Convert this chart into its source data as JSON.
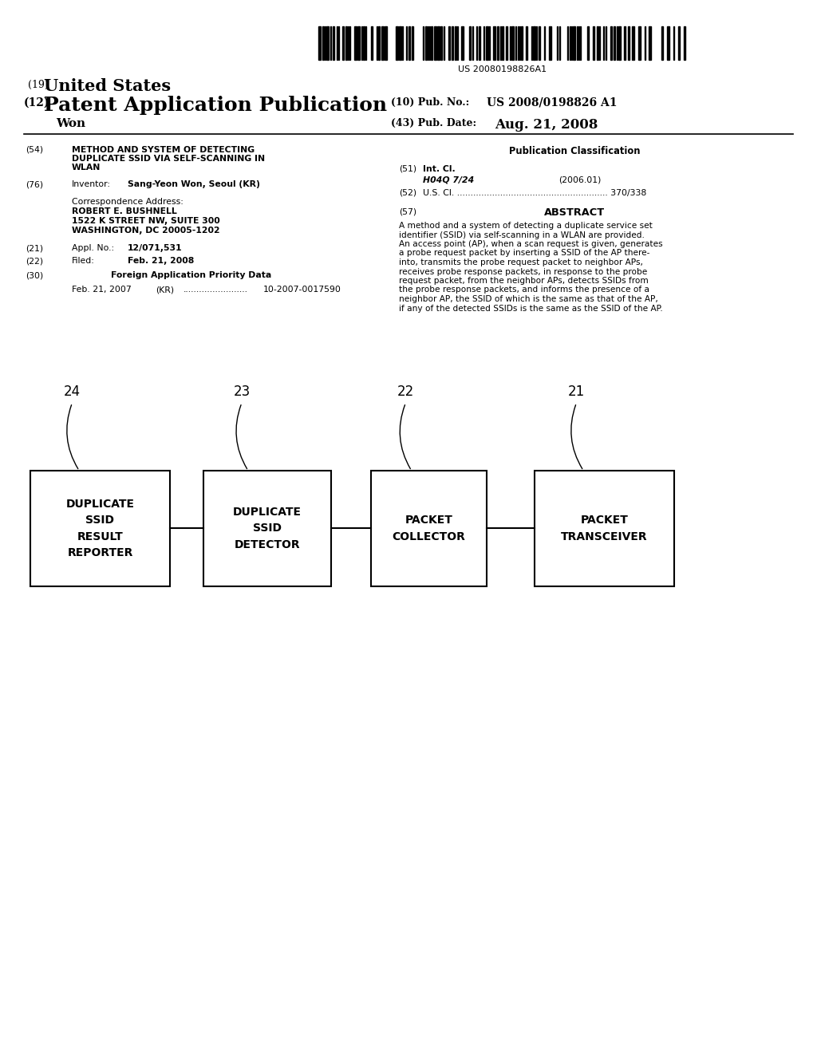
{
  "bg_color": "#ffffff",
  "barcode_text": "US 20080198826A1",
  "title_19_small": "(19)",
  "title_19_large": "United States",
  "title_12_small": "(12)",
  "title_12_large": "Patent Application Publication",
  "pub_no_label": "(10) Pub. No.:",
  "pub_no_value": "US 2008/0198826 A1",
  "pub_date_label": "(43) Pub. Date:",
  "pub_date_value": "Aug. 21, 2008",
  "inventor_line": "Won",
  "field_54_label": "(54)",
  "field_54_text_line1": "METHOD AND SYSTEM OF DETECTING",
  "field_54_text_line2": "DUPLICATE SSID VIA SELF-SCANNING IN",
  "field_54_text_line3": "WLAN",
  "field_76_label": "(76)",
  "field_76_title": "Inventor:",
  "field_76_value": "Sang-Yeon Won, Seoul (KR)",
  "corr_title": "Correspondence Address:",
  "corr_name": "ROBERT E. BUSHNELL",
  "corr_addr1": "1522 K STREET NW, SUITE 300",
  "corr_addr2": "WASHINGTON, DC 20005-1202",
  "field_21_label": "(21)",
  "field_21_title": "Appl. No.:",
  "field_21_value": "12/071,531",
  "field_22_label": "(22)",
  "field_22_title": "Filed:",
  "field_22_value": "Feb. 21, 2008",
  "field_30_label": "(30)",
  "field_30_title": "Foreign Application Priority Data",
  "field_30_line": "Feb. 21, 2007    (KR) ........................ 10-2007-0017590",
  "pub_class_title": "Publication Classification",
  "field_51_label": "(51)",
  "field_51_title": "Int. Cl.",
  "field_51_class": "H04Q 7/24",
  "field_51_year": "(2006.01)",
  "field_52_label": "(52)",
  "field_52_text": "U.S. Cl. ........................................................ 370/338",
  "field_57_label": "(57)",
  "field_57_title": "ABSTRACT",
  "abstract_line1": "A method and a system of detecting a duplicate service set",
  "abstract_line2": "identifier (SSID) via self-scanning in a WLAN are provided.",
  "abstract_line3": "An access point (AP), when a scan request is given, generates",
  "abstract_line4": "a probe request packet by inserting a SSID of the AP there-",
  "abstract_line5": "into, transmits the probe request packet to neighbor APs,",
  "abstract_line6": "receives probe response packets, in response to the probe",
  "abstract_line7": "request packet, from the neighbor APs, detects SSIDs from",
  "abstract_line8": "the probe response packets, and informs the presence of a",
  "abstract_line9": "neighbor AP, the SSID of which is the same as that of the AP,",
  "abstract_line10": "if any of the detected SSIDs is the same as the SSID of the AP.",
  "box1_label": "DUPLICATE\nSSID\nRESULT\nREPORTER",
  "box2_label": "DUPLICATE\nSSID\nDETECTOR",
  "box3_label": "PACKET\nCOLLECTOR",
  "box4_label": "PACKET\nTRANSCEIVER",
  "box_nums": [
    "24",
    "23",
    "22",
    "21"
  ]
}
